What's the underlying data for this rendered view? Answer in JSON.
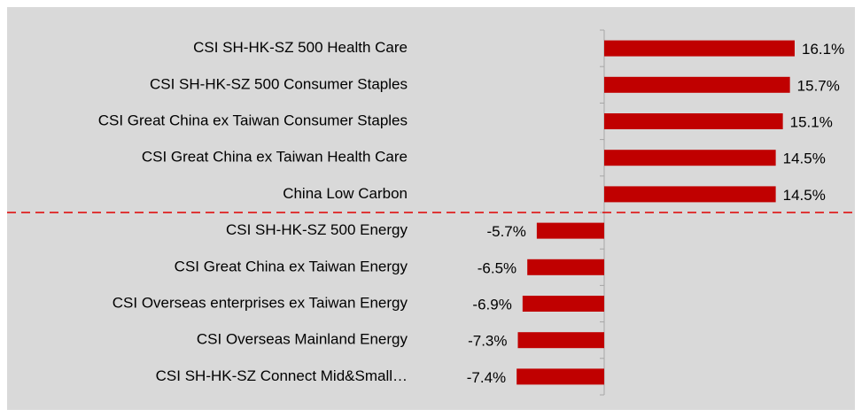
{
  "chart_data": {
    "type": "bar",
    "orientation": "horizontal",
    "categories": [
      "CSI SH-HK-SZ 500 Health Care",
      "CSI SH-HK-SZ 500 Consumer Staples",
      "CSI Great China ex Taiwan Consumer Staples",
      "CSI Great China ex Taiwan Health Care",
      "China Low Carbon",
      "CSI SH-HK-SZ 500 Energy",
      "CSI Great China ex Taiwan Energy",
      "CSI Overseas enterprises ex Taiwan Energy",
      "CSI Overseas Mainland Energy",
      "CSI SH-HK-SZ Connect Mid&Small…"
    ],
    "values": [
      16.1,
      15.7,
      15.1,
      14.5,
      14.5,
      -5.7,
      -6.5,
      -6.9,
      -7.3,
      -7.4
    ],
    "value_labels": [
      "16.1%",
      "15.7%",
      "15.1%",
      "14.5%",
      "14.5%",
      "-5.7%",
      "-6.5%",
      "-6.9%",
      "-7.3%",
      "-7.4%"
    ],
    "color": "#c00000"
  }
}
